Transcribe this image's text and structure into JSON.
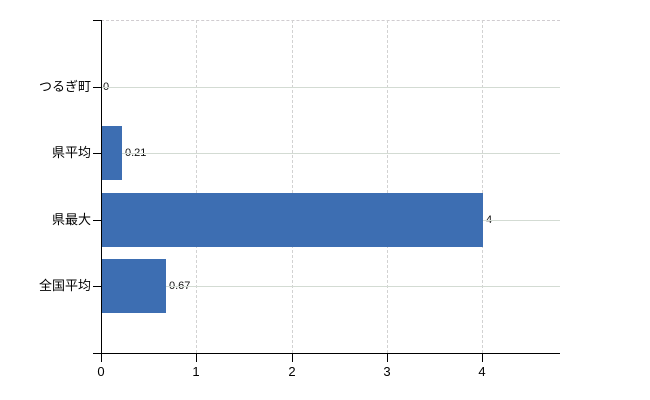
{
  "chart_data": {
    "type": "bar",
    "orientation": "horizontal",
    "title": "",
    "xlabel": "",
    "ylabel": "",
    "categories": [
      "つるぎ町",
      "県平均",
      "県最大",
      "全国平均"
    ],
    "values": [
      0,
      0.21,
      4,
      0.67
    ],
    "value_labels": [
      "0",
      "0.21",
      "4",
      "0.67"
    ],
    "x_ticks": [
      "0",
      "1",
      "2",
      "3",
      "4"
    ],
    "x_tick_values": [
      0,
      1,
      2,
      3,
      4
    ],
    "xlim": [
      0,
      4.82
    ],
    "grid": true,
    "legend": "none",
    "colors": {
      "bar": "#3d6eb2",
      "axis": "#000000",
      "h_gridline": "#d3dbd3",
      "v_gridline": "#d2d2d2",
      "top_border": "#d0ccd0",
      "label_text": "#000000",
      "value_text": "#111111",
      "background": "#ffffff"
    }
  }
}
